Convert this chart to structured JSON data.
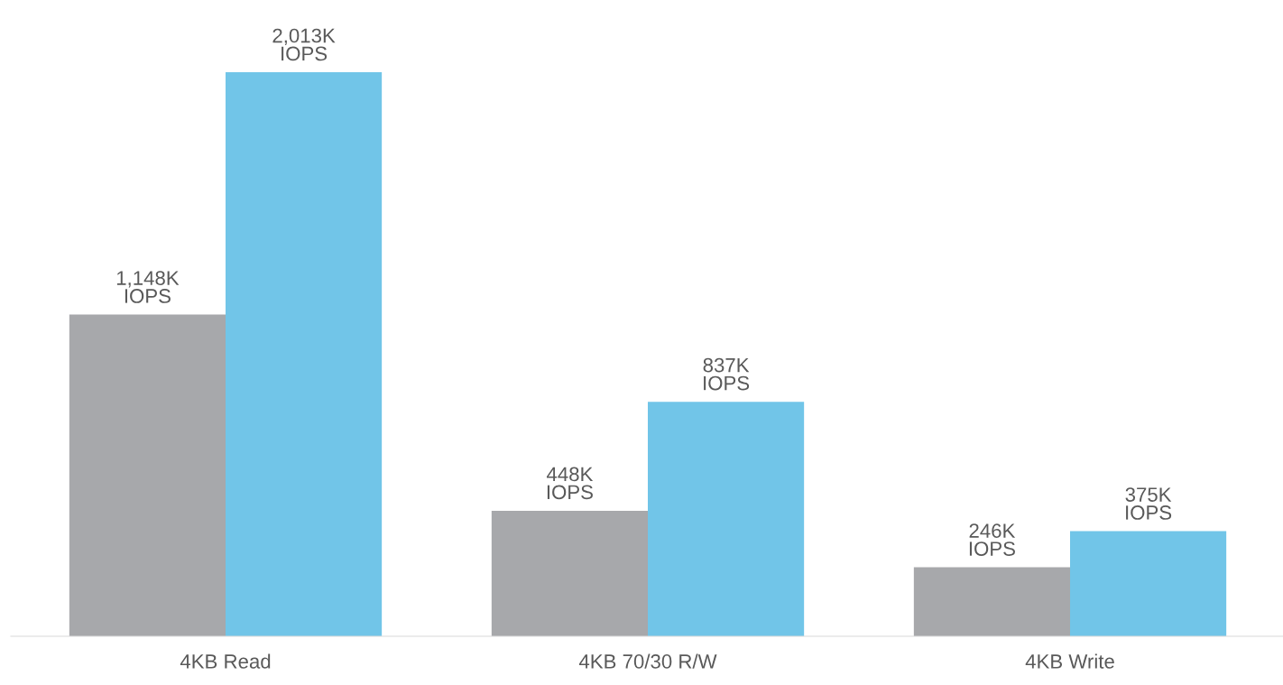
{
  "chart_data": {
    "type": "bar",
    "categories": [
      "4KB Read",
      "4KB 70/30 R/W",
      "4KB Write"
    ],
    "series": [
      {
        "color": "#a7a8ab",
        "values": [
          1148,
          448,
          246
        ],
        "value_labels": [
          "1,148K\nIOPS",
          "448K\nIOPS",
          "246K\nIOPS"
        ]
      },
      {
        "color": "#71c5e8",
        "values": [
          2013,
          837,
          375
        ],
        "value_labels": [
          "2,013K\nIOPS",
          "837K\nIOPS",
          "375K\nIOPS"
        ]
      }
    ],
    "grid": false,
    "legend": false
  }
}
